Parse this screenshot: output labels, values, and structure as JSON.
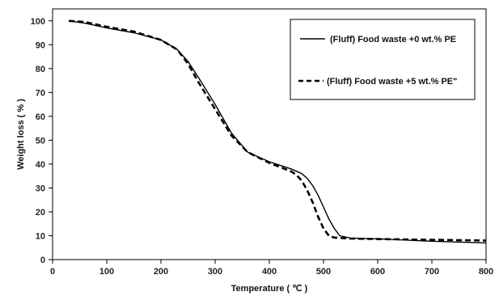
{
  "chart_data": {
    "type": "line",
    "xlabel": "Temperature ( ℃ )",
    "ylabel": "Weight loss  ( % )",
    "xlim": [
      0,
      800
    ],
    "ylim": [
      0,
      105
    ],
    "xticks": [
      0,
      100,
      200,
      300,
      400,
      500,
      600,
      700,
      800
    ],
    "yticks": [
      0,
      10,
      20,
      30,
      40,
      50,
      60,
      70,
      80,
      90,
      100
    ],
    "grid": false,
    "legend_position": "top-right",
    "series": [
      {
        "name": "(Fluff) Food waste +0 wt.% PE",
        "style": "solid",
        "color": "#000000",
        "x": [
          30,
          60,
          100,
          150,
          200,
          230,
          250,
          270,
          300,
          330,
          360,
          400,
          440,
          460,
          470,
          480,
          490,
          500,
          510,
          520,
          530,
          550,
          600,
          700,
          800
        ],
        "y": [
          100,
          99,
          97,
          95,
          92,
          88,
          83,
          76,
          65,
          53,
          45,
          41,
          38,
          36,
          34,
          31,
          27,
          22,
          17,
          13,
          10,
          9,
          8.7,
          7.7,
          7.0
        ]
      },
      {
        "name": "(Fluff) Food waste +5 wt.% PE\"",
        "style": "dashed",
        "color": "#000000",
        "x": [
          30,
          60,
          100,
          150,
          200,
          230,
          250,
          270,
          300,
          330,
          360,
          400,
          440,
          450,
          460,
          470,
          480,
          490,
          500,
          510,
          520,
          550,
          600,
          700,
          800
        ],
        "y": [
          100,
          99.5,
          97.5,
          95.5,
          92,
          88,
          82,
          74,
          63,
          52,
          45,
          40.5,
          37,
          35.5,
          33,
          29,
          24,
          18,
          13,
          10,
          9.2,
          8.8,
          8.6,
          8.3,
          8.0
        ]
      }
    ]
  }
}
